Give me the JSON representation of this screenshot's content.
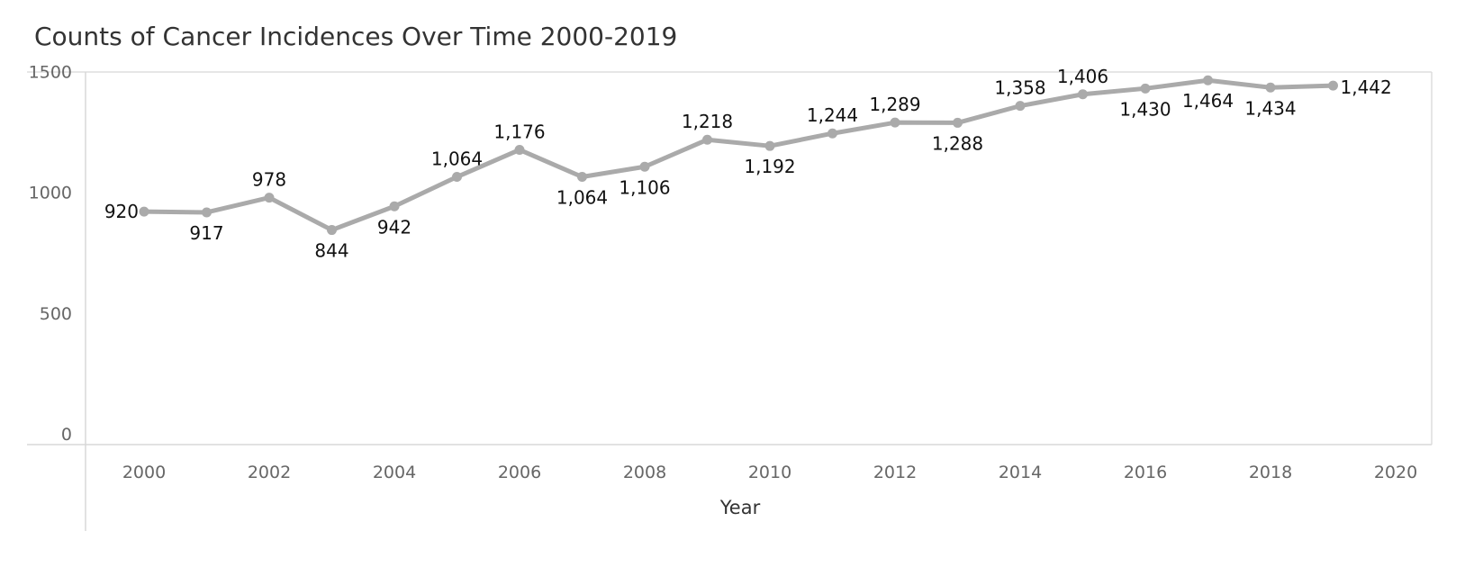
{
  "chart_data": {
    "type": "line",
    "title": "Counts of Cancer Incidences Over Time 2000-2019",
    "xlabel": "Year",
    "ylabel": "",
    "xlim": [
      1999,
      2020
    ],
    "ylim": [
      0,
      1550
    ],
    "x_ticks": [
      2000,
      2002,
      2004,
      2006,
      2008,
      2010,
      2012,
      2014,
      2016,
      2018,
      2020
    ],
    "y_ticks": [
      0,
      500,
      1000,
      1500
    ],
    "legend": "none",
    "grid": false,
    "line_color": "#aaaaaa",
    "series": [
      {
        "x": [
          2000,
          2001,
          2002,
          2003,
          2004,
          2005,
          2006,
          2007,
          2008,
          2009,
          2010,
          2011,
          2012,
          2013,
          2014,
          2015,
          2016,
          2017,
          2018,
          2019
        ],
        "values": [
          920,
          917,
          978,
          844,
          942,
          1064,
          1176,
          1064,
          1106,
          1218,
          1192,
          1244,
          1289,
          1288,
          1358,
          1406,
          1430,
          1464,
          1434,
          1442
        ],
        "labels": [
          "920",
          "917",
          "978",
          "844",
          "942",
          "1,064",
          "1,176",
          "1,064",
          "1,106",
          "1,218",
          "1,192",
          "1,244",
          "1,289",
          "1,288",
          "1,358",
          "1,406",
          "1,430",
          "1,464",
          "1,434",
          "1,442"
        ],
        "label_positions": [
          "left",
          "below",
          "above",
          "below",
          "below",
          "above",
          "above",
          "below",
          "below",
          "above",
          "below",
          "above",
          "above",
          "below",
          "above",
          "above",
          "below",
          "below",
          "below",
          "right"
        ]
      }
    ]
  }
}
